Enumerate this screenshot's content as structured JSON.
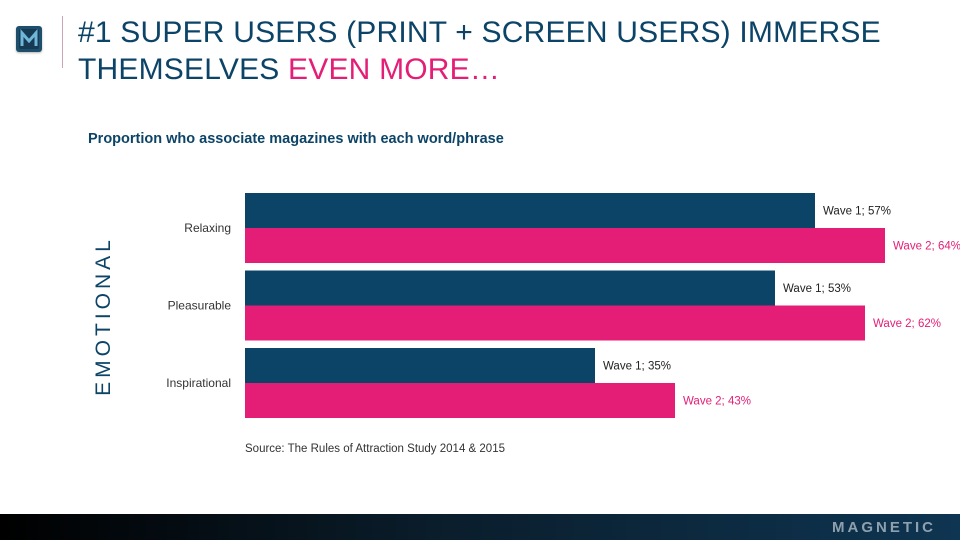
{
  "logo": {
    "letter": "M"
  },
  "title": {
    "main": "#1 SUPER USERS (PRINT + SCREEN USERS)  IMMERSE THEMSELVES",
    "accent": "EVEN MORE…"
  },
  "section_label": "EMOTIONAL",
  "source": "Source: The Rules of Attraction Study 2014  & 2015",
  "brand": "MAGNETIC",
  "chart_data": {
    "type": "bar",
    "orientation": "horizontal",
    "title": "Proportion who associate magazines with each word/phrase",
    "xlabel": "",
    "ylabel": "",
    "xlim": [
      0,
      72
    ],
    "grid": false,
    "legend": "none",
    "categories": [
      "Relaxing",
      "Pleasurable",
      "Inspirational"
    ],
    "series": [
      {
        "name": "Wave 1",
        "color": "#0c4468",
        "values": [
          57,
          53,
          35
        ],
        "labels": [
          "Wave 1; 57%",
          "Wave 1; 53%",
          "Wave 1; 35%"
        ]
      },
      {
        "name": "Wave 2",
        "color": "#e41e76",
        "values": [
          64,
          62,
          43
        ],
        "labels": [
          "Wave 2; 64%",
          "Wave 2; 62%",
          "Wave 2; 43%"
        ]
      }
    ]
  }
}
